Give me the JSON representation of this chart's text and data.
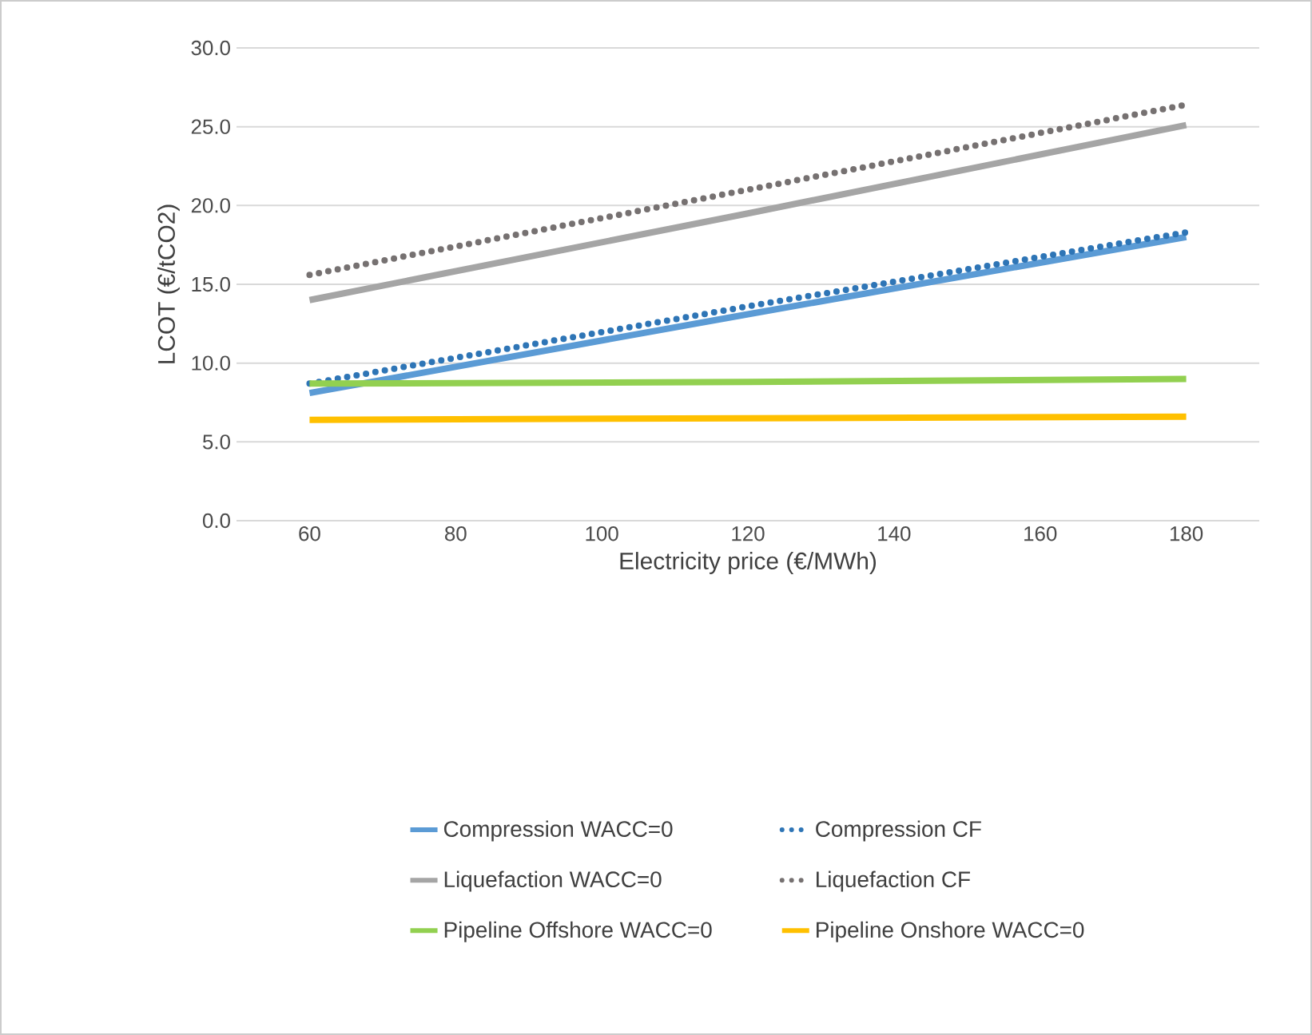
{
  "chart_data": {
    "type": "line",
    "xlabel": "Electricity price (€/MWh)",
    "ylabel": "LCOT (€/tCO2)",
    "xlim": [
      50,
      190
    ],
    "xticks": [
      60,
      80,
      100,
      120,
      140,
      160,
      180
    ],
    "ylim": [
      0,
      30
    ],
    "yticks": [
      {
        "value": 0,
        "label": "0.0"
      },
      {
        "value": 5,
        "label": "5.0"
      },
      {
        "value": 10,
        "label": "10.0"
      },
      {
        "value": 15,
        "label": "15.0"
      },
      {
        "value": 20,
        "label": "20.0"
      },
      {
        "value": 25,
        "label": "25.0"
      },
      {
        "value": 30,
        "label": "30.0"
      }
    ],
    "grid": "y",
    "legend": "bottom",
    "marker": "none",
    "x": [
      60,
      120,
      180
    ],
    "series": [
      {
        "name": "Compression WACC=0",
        "color": "#5b9bd5",
        "line_style": "solid",
        "values": [
          8.1,
          13.1,
          18.0
        ]
      },
      {
        "name": "Compression CF",
        "color": "#2e75b6",
        "line_style": "dotted",
        "values": [
          8.7,
          13.6,
          18.3
        ]
      },
      {
        "name": "Liquefaction WACC=0",
        "color": "#a5a5a5",
        "line_style": "solid",
        "values": [
          14.0,
          19.5,
          25.1
        ]
      },
      {
        "name": "Liquefaction CF",
        "color": "#767171",
        "line_style": "dotted",
        "values": [
          15.6,
          21.0,
          26.4
        ]
      },
      {
        "name": "Pipeline Offshore WACC=0",
        "color": "#92d050",
        "line_style": "solid",
        "values": [
          8.7,
          8.8,
          9.0
        ]
      },
      {
        "name": "Pipeline Onshore WACC=0",
        "color": "#ffc000",
        "line_style": "solid",
        "values": [
          6.4,
          6.5,
          6.6
        ]
      }
    ]
  }
}
